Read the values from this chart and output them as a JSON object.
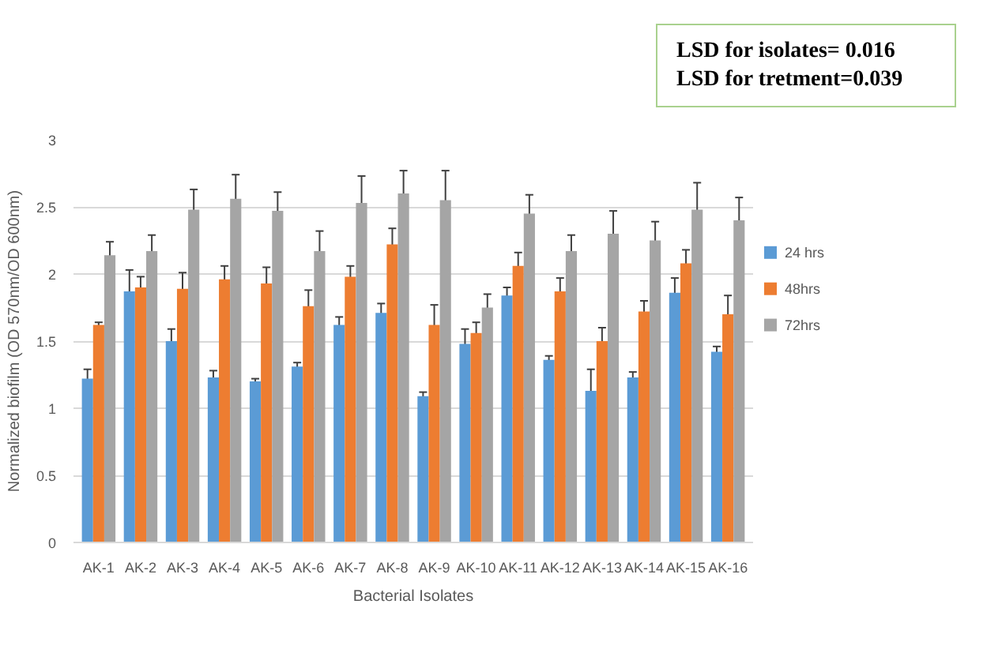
{
  "chart_data": {
    "type": "bar",
    "xlabel": "Bacterial Isolates",
    "ylabel": "Normalized biofilm (OD 570nm/OD 600nm)",
    "categories": [
      "AK-1",
      "AK-2",
      "AK-3",
      "AK-4",
      "AK-5",
      "AK-6",
      "AK-7",
      "AK-8",
      "AK-9",
      "AK-10",
      "AK-11",
      "AK-12",
      "AK-13",
      "AK-14",
      "AK-15",
      "AK-16"
    ],
    "series": [
      {
        "name": "24 hrs",
        "color": "#5b9bd5",
        "values": [
          1.22,
          1.87,
          1.5,
          1.23,
          1.2,
          1.31,
          1.62,
          1.71,
          1.09,
          1.48,
          1.84,
          1.36,
          1.13,
          1.23,
          1.86,
          1.42
        ],
        "errors": [
          0.07,
          0.16,
          0.09,
          0.05,
          0.02,
          0.03,
          0.06,
          0.07,
          0.03,
          0.11,
          0.06,
          0.03,
          0.16,
          0.04,
          0.11,
          0.04
        ]
      },
      {
        "name": "48hrs",
        "color": "#ed7d31",
        "values": [
          1.62,
          1.9,
          1.89,
          1.96,
          1.93,
          1.76,
          1.98,
          2.22,
          1.62,
          1.56,
          2.06,
          1.87,
          1.5,
          1.72,
          2.08,
          1.7
        ],
        "errors": [
          0.02,
          0.08,
          0.12,
          0.1,
          0.12,
          0.12,
          0.08,
          0.12,
          0.15,
          0.08,
          0.1,
          0.1,
          0.1,
          0.08,
          0.1,
          0.14
        ]
      },
      {
        "name": "72hrs",
        "color": "#a5a5a5",
        "values": [
          2.14,
          2.17,
          2.48,
          2.56,
          2.47,
          2.17,
          2.53,
          2.6,
          2.55,
          1.75,
          2.45,
          2.17,
          2.3,
          2.25,
          2.48,
          2.4
        ],
        "errors": [
          0.1,
          0.12,
          0.15,
          0.18,
          0.14,
          0.15,
          0.2,
          0.17,
          0.22,
          0.1,
          0.14,
          0.12,
          0.17,
          0.14,
          0.2,
          0.17
        ]
      }
    ],
    "ylim": [
      0,
      3
    ],
    "yticks": [
      0,
      0.5,
      1,
      1.5,
      2,
      2.5,
      3
    ],
    "grid": "y",
    "legend": "right",
    "annotations": [
      "LSD for isolates= 0.016",
      "LSD for tretment=0.039"
    ]
  }
}
